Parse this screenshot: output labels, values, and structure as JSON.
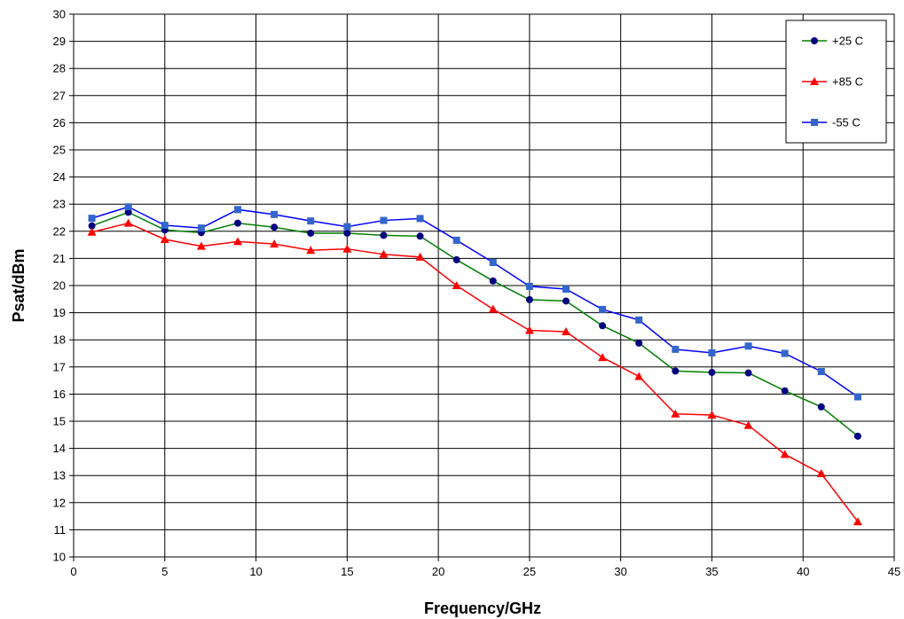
{
  "chart_data": {
    "type": "line",
    "title": "",
    "xlabel": "Frequency/GHz",
    "ylabel": "Psat/dBm",
    "xlim": [
      0,
      45
    ],
    "ylim": [
      10,
      30
    ],
    "xticks": [
      0,
      5,
      10,
      15,
      20,
      25,
      30,
      35,
      40,
      45
    ],
    "yticks": [
      10,
      11,
      12,
      13,
      14,
      15,
      16,
      17,
      18,
      19,
      20,
      21,
      22,
      23,
      24,
      25,
      26,
      27,
      28,
      29,
      30
    ],
    "grid": true,
    "legend_position": "top-right",
    "x": [
      1,
      3,
      5,
      7,
      9,
      11,
      13,
      15,
      17,
      19,
      21,
      23,
      25,
      27,
      29,
      31,
      33,
      35,
      37,
      39,
      41,
      43
    ],
    "series": [
      {
        "name": "+25 C",
        "color": "#008000",
        "marker_color": "#000080",
        "marker": "circle",
        "values": [
          22.2,
          22.7,
          22.05,
          21.95,
          22.3,
          22.15,
          21.93,
          21.93,
          21.85,
          21.82,
          20.95,
          20.17,
          19.48,
          19.43,
          18.52,
          17.88,
          16.85,
          16.8,
          16.78,
          16.12,
          15.53,
          14.45
        ]
      },
      {
        "name": "+85 C",
        "color": "#ff0000",
        "marker_color": "#ff0000",
        "marker": "triangle",
        "values": [
          21.97,
          22.3,
          21.7,
          21.45,
          21.62,
          21.53,
          21.3,
          21.35,
          21.15,
          21.05,
          20.0,
          19.13,
          18.35,
          18.3,
          17.35,
          16.65,
          15.27,
          15.23,
          14.85,
          13.78,
          13.07,
          11.3
        ]
      },
      {
        "name": "-55 C",
        "color": "#0000ff",
        "marker_color": "#3366cc",
        "marker": "square",
        "values": [
          22.48,
          22.9,
          22.22,
          22.12,
          22.8,
          22.62,
          22.38,
          22.17,
          22.4,
          22.47,
          21.67,
          20.85,
          19.97,
          19.87,
          19.12,
          18.73,
          17.65,
          17.52,
          17.77,
          17.5,
          16.83,
          15.9
        ]
      }
    ]
  }
}
